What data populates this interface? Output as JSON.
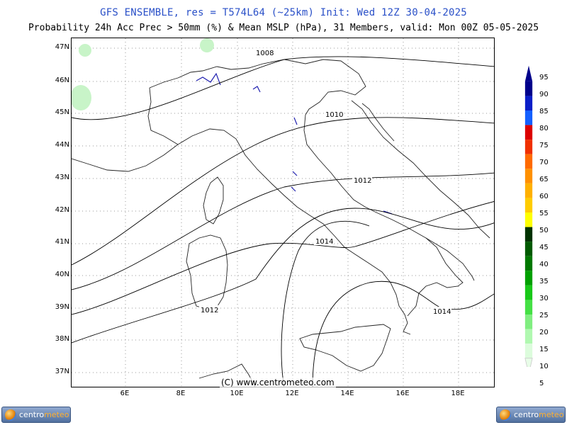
{
  "header": {
    "title_line1": "GFS ENSEMBLE, res = T574L64 (~25km)   Init: Wed 12Z 30-04-2025",
    "title_line2": "Probability 24h Acc Prec > 50mm (%) & Mean MSLP (hPa), 31 Members, valid: Mon 00Z 05-05-2025"
  },
  "map": {
    "lat_labels": [
      "47N",
      "46N",
      "45N",
      "44N",
      "43N",
      "42N",
      "41N",
      "40N",
      "39N",
      "38N",
      "37N"
    ],
    "lon_labels": [
      "6E",
      "8E",
      "10E",
      "12E",
      "14E",
      "16E",
      "18E"
    ],
    "isobar_labels": [
      "1008",
      "1010",
      "1012",
      "1014",
      "1012",
      "1014"
    ],
    "copyright": "(C) www.centrometeo.com"
  },
  "colorbar": {
    "levels": [
      "95",
      "90",
      "85",
      "80",
      "75",
      "70",
      "65",
      "60",
      "55",
      "50",
      "45",
      "40",
      "35",
      "30",
      "25",
      "20",
      "15",
      "10",
      "5"
    ],
    "colors": [
      "#00008b",
      "#0a1ec8",
      "#1460ff",
      "#dc0000",
      "#f03000",
      "#ff6a00",
      "#ff9000",
      "#ffb000",
      "#ffcc00",
      "#ffff00",
      "#003200",
      "#005a00",
      "#007800",
      "#00a000",
      "#18c818",
      "#44e044",
      "#80ee80",
      "#b0f8b0",
      "#dcfcdc"
    ]
  },
  "logos": {
    "left": {
      "brand_a": "centro",
      "brand_b": "meteo"
    },
    "right": {
      "brand_a": "centro",
      "brand_b": "meteo"
    }
  }
}
